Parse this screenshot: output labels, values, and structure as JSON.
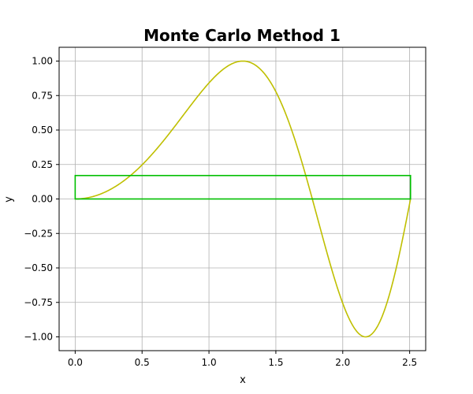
{
  "chart_data": {
    "type": "line",
    "title": "Monte Carlo Method 1",
    "xlabel": "x",
    "ylabel": "y",
    "xlim": [
      -0.12,
      2.62
    ],
    "ylim": [
      -1.1,
      1.1
    ],
    "xticks": [
      0.0,
      0.5,
      1.0,
      1.5,
      2.0,
      2.5
    ],
    "xtick_labels": [
      "0.0",
      "0.5",
      "1.0",
      "1.5",
      "2.0",
      "2.5"
    ],
    "yticks": [
      -1.0,
      -0.75,
      -0.5,
      -0.25,
      0.0,
      0.25,
      0.5,
      0.75,
      1.0
    ],
    "ytick_labels": [
      "−1.00",
      "−0.75",
      "−0.50",
      "−0.25",
      "0.00",
      "0.25",
      "0.50",
      "0.75",
      "1.00"
    ],
    "grid": true,
    "series": [
      {
        "type": "line",
        "color": "#bfbf00",
        "function": "y = sin(x^2)",
        "x_range": [
          0,
          2.5066
        ]
      },
      {
        "type": "rectangle",
        "color": "#00bf00",
        "x": [
          0.0,
          2.5066
        ],
        "y": [
          0.0,
          0.17
        ]
      }
    ]
  }
}
